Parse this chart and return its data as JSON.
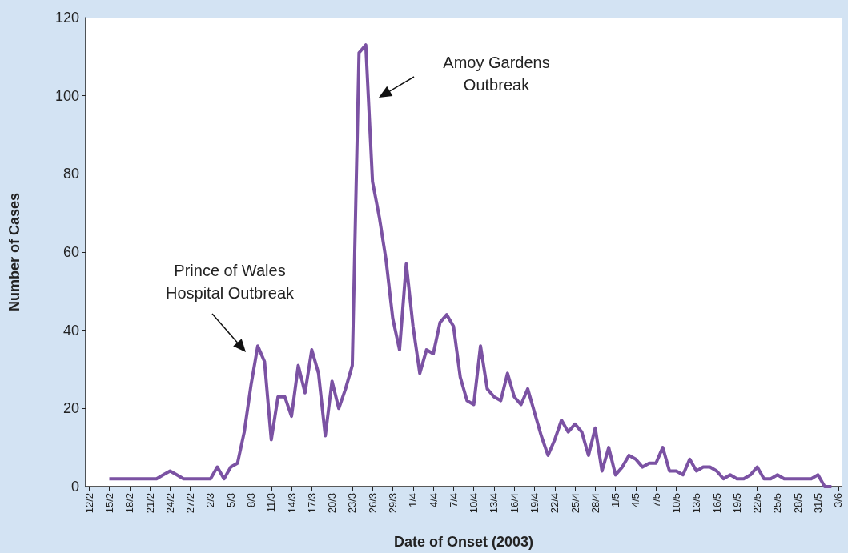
{
  "chart_data": {
    "type": "line",
    "xlabel": "Date of Onset (2003)",
    "ylabel": "Number of Cases",
    "categories": [
      "12/2",
      null,
      null,
      "15/2",
      null,
      null,
      "18/2",
      null,
      null,
      "21/2",
      null,
      null,
      "24/2",
      null,
      null,
      "27/2",
      null,
      null,
      "2/3",
      null,
      null,
      "5/3",
      null,
      null,
      "8/3",
      null,
      null,
      "11/3",
      null,
      null,
      "14/3",
      null,
      null,
      "17/3",
      null,
      null,
      "20/3",
      null,
      null,
      "23/3",
      null,
      null,
      "26/3",
      null,
      null,
      "29/3",
      null,
      null,
      "1/4",
      null,
      null,
      "4/4",
      null,
      null,
      "7/4",
      null,
      null,
      "10/4",
      null,
      null,
      "13/4",
      null,
      null,
      "16/4",
      null,
      null,
      "19/4",
      null,
      null,
      "22/4",
      null,
      null,
      "25/4",
      null,
      null,
      "28/4",
      null,
      null,
      "1/5",
      null,
      null,
      "4/5",
      null,
      null,
      "7/5",
      null,
      null,
      "10/5",
      null,
      null,
      "13/5",
      null,
      null,
      "16/5",
      null,
      null,
      "19/5",
      null,
      null,
      "22/5",
      null,
      null,
      "25/5",
      null,
      null,
      "28/5",
      null,
      null,
      "31/5",
      null,
      null,
      "3/6"
    ],
    "series": [
      {
        "color": "#7b52a3",
        "values": [
          null,
          null,
          null,
          2,
          2,
          2,
          2,
          2,
          2,
          2,
          2,
          3,
          4,
          3,
          2,
          2,
          2,
          2,
          2,
          5,
          2,
          5,
          6,
          14,
          26,
          36,
          32,
          12,
          23,
          23,
          18,
          31,
          24,
          35,
          29,
          13,
          27,
          20,
          25,
          31,
          111,
          113,
          78,
          69,
          58,
          43,
          35,
          57,
          41,
          29,
          35,
          34,
          42,
          44,
          41,
          28,
          22,
          21,
          36,
          25,
          23,
          22,
          29,
          23,
          21,
          25,
          19,
          13,
          8,
          12,
          17,
          14,
          16,
          14,
          8,
          15,
          4,
          10,
          3,
          5,
          8,
          7,
          5,
          6,
          6,
          10,
          4,
          4,
          3,
          7,
          4,
          5,
          5,
          4,
          2,
          3,
          2,
          2,
          3,
          5,
          2,
          2,
          3,
          2,
          2,
          2,
          2,
          2,
          3,
          0,
          0,
          null
        ]
      }
    ],
    "ylim": [
      0,
      120
    ],
    "yticks": [
      0,
      20,
      40,
      60,
      80,
      100,
      120
    ],
    "grid": false,
    "marker": "none",
    "line_style": "solid",
    "annotations": [
      "Prince of Wales\nHospital Outbreak",
      "Amoy Gardens\nOutbreak"
    ]
  }
}
